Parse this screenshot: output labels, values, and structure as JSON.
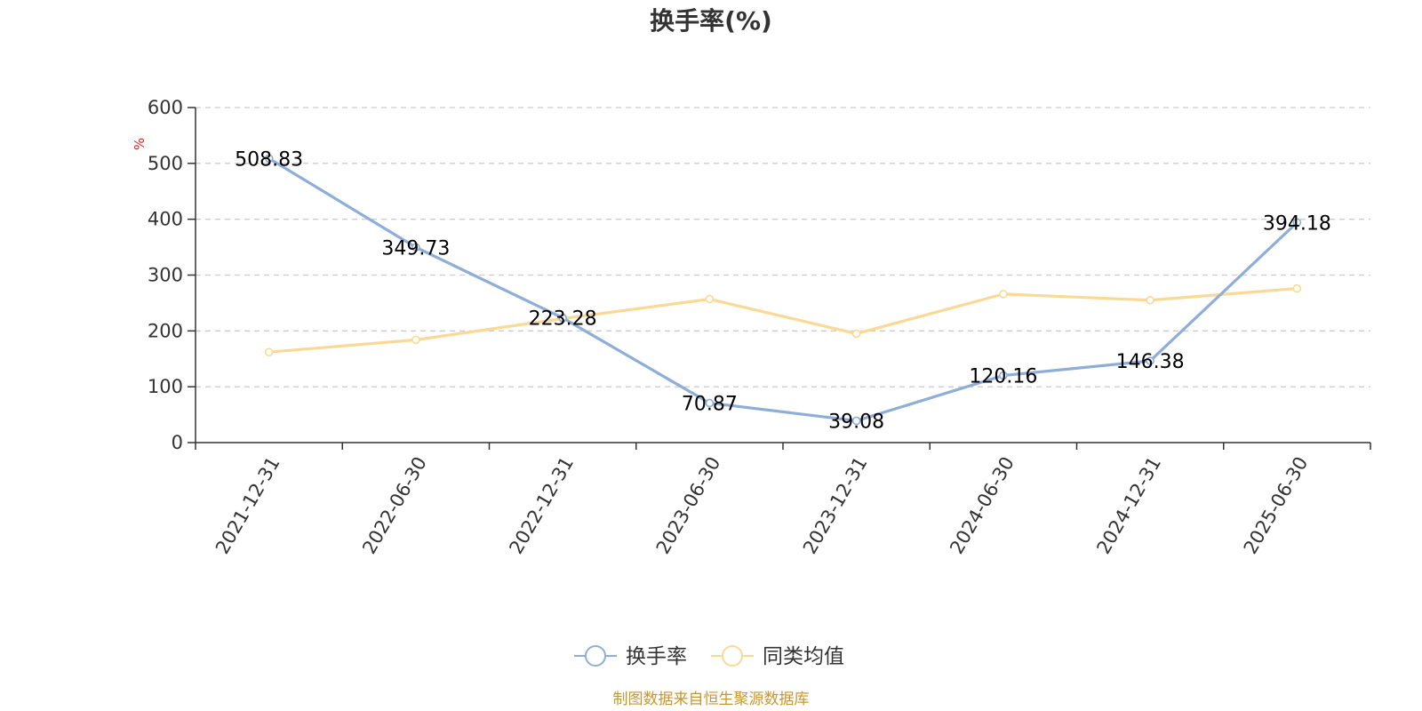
{
  "chart_data": {
    "type": "line",
    "title": "换手率(%)",
    "ylabel": "%",
    "xlabel": "",
    "ylim": [
      0,
      600
    ],
    "yticks": [
      0,
      100,
      200,
      300,
      400,
      500,
      600
    ],
    "categories": [
      "2021-12-31",
      "2022-06-30",
      "2022-12-31",
      "2023-06-30",
      "2023-12-31",
      "2024-06-30",
      "2024-12-31",
      "2025-06-30"
    ],
    "series": [
      {
        "name": "换手率",
        "color": "#8eaed8",
        "values": [
          508.83,
          349.73,
          223.28,
          70.87,
          39.08,
          120.16,
          146.38,
          394.18
        ],
        "labels": [
          "508.83",
          "349.73",
          "223.28",
          "70.87",
          "39.08",
          "120.16",
          "146.38",
          "394.18"
        ]
      },
      {
        "name": "同类均值",
        "color": "#fad996",
        "values": [
          162,
          184,
          222,
          257,
          195,
          266,
          255,
          276
        ]
      }
    ],
    "grid": true,
    "grid_style": "dashed",
    "legend_position": "bottom-center"
  },
  "source": {
    "text": "制图数据来自恒生聚源数据库",
    "color": "#c8962f"
  },
  "colors": {
    "axis": "#333333",
    "grid": "#cccccc",
    "unit": "#e02020"
  }
}
